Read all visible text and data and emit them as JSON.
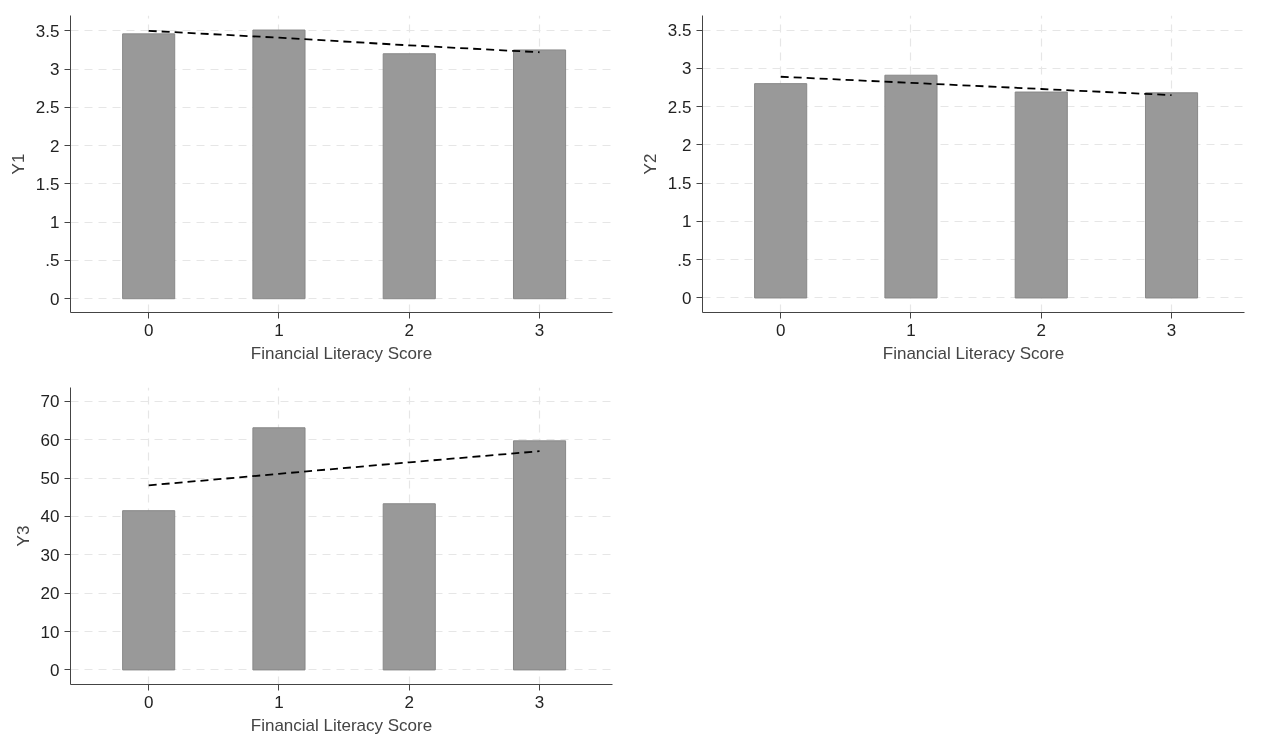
{
  "chart_data": [
    {
      "type": "bar",
      "xlabel": "Financial Literacy Score",
      "ylabel": "Y1",
      "categories": [
        "0",
        "1",
        "2",
        "3"
      ],
      "ylim": [
        -0.18,
        3.7
      ],
      "yticks": [
        0,
        {
          "value": 0.5,
          "label": ".5"
        },
        1,
        1.5,
        2,
        2.5,
        3,
        3.5
      ],
      "grid": true,
      "series": [
        {
          "color": "#999999",
          "values": [
            3.46,
            3.51,
            3.2,
            3.25
          ]
        },
        {
          "type": "line",
          "color": "#000000",
          "line_style": "dashed",
          "values": [
            3.5,
            3.41,
            3.31,
            3.22
          ]
        }
      ]
    },
    {
      "type": "bar",
      "xlabel": "Financial Literacy Score",
      "ylabel": "Y2",
      "categories": [
        "0",
        "1",
        "2",
        "3"
      ],
      "ylim": [
        -0.19,
        3.69
      ],
      "yticks": [
        0,
        {
          "value": 0.5,
          "label": ".5"
        },
        1,
        1.5,
        2,
        2.5,
        3,
        3.5
      ],
      "grid": true,
      "series": [
        {
          "color": "#999999",
          "values": [
            2.8,
            2.91,
            2.69,
            2.68
          ]
        },
        {
          "type": "line",
          "color": "#000000",
          "line_style": "dashed",
          "values": [
            2.89,
            2.81,
            2.73,
            2.65
          ]
        }
      ]
    },
    {
      "type": "bar",
      "xlabel": "Financial Literacy Score",
      "ylabel": "Y3",
      "categories": [
        "0",
        "1",
        "2",
        "3"
      ],
      "ylim": [
        -3.8,
        73.6
      ],
      "yticks": [
        0,
        10,
        20,
        30,
        40,
        50,
        60,
        70
      ],
      "grid": true,
      "series": [
        {
          "color": "#999999",
          "values": [
            41.5,
            63.1,
            43.3,
            59.7
          ]
        },
        {
          "type": "line",
          "color": "#000000",
          "line_style": "dashed",
          "values": [
            48.1,
            51.1,
            54.1,
            57.0
          ]
        }
      ]
    }
  ]
}
